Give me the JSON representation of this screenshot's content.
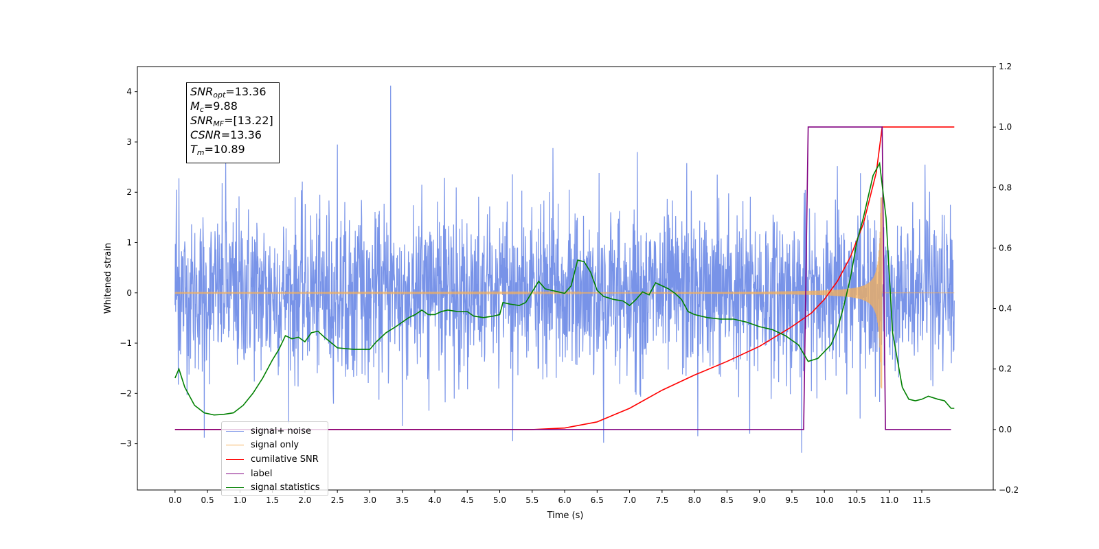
{
  "chart_data": {
    "type": "line",
    "xlabel": "Time (s)",
    "ylabel": "Whitened strain",
    "x_ticks": [
      "0.0",
      "0.5",
      "1.0",
      "1.5",
      "2.0",
      "2.5",
      "3.0",
      "3.5",
      "4.0",
      "4.5",
      "5.0",
      "5.5",
      "6.0",
      "6.5",
      "7.0",
      "7.5",
      "8.0",
      "8.5",
      "9.0",
      "9.5",
      "10.0",
      "10.5",
      "11.0",
      "11.5"
    ],
    "y_ticks": [
      -3,
      -2,
      -1,
      0,
      1,
      2,
      3,
      4
    ],
    "y2_ticks": [
      "−0.2",
      "0.0",
      "0.2",
      "0.4",
      "0.6",
      "0.8",
      "1.0",
      "1.2"
    ],
    "y_tick_labels": [
      "−3",
      "−2",
      "−1",
      "0",
      "1",
      "2",
      "3",
      "4"
    ],
    "xlim": [
      -0.58,
      12.6
    ],
    "ylim": [
      -3.92,
      4.5
    ],
    "y2lim": [
      -0.2,
      1.2
    ],
    "grid": false,
    "legend_position": "lower-left",
    "stats_box": {
      "snr_opt": "=13.36",
      "mc": "=9.88",
      "snr_mf": "=[13.22]",
      "csnr": "=13.36",
      "tm": "=10.89"
    },
    "series": [
      {
        "name": "signal+ noise",
        "color": "#7893e8",
        "axis": "left",
        "style": "noise",
        "t_start": 0.0,
        "t_end": 12.0,
        "typical_range": [
          -1.5,
          1.5
        ],
        "spikes": [
          [
            0.02,
            2.05
          ],
          [
            0.06,
            2.28
          ],
          [
            0.45,
            -2.88
          ],
          [
            0.78,
            2.6
          ],
          [
            1.75,
            -2.6
          ],
          [
            2.5,
            2.95
          ],
          [
            3.32,
            4.12
          ],
          [
            3.5,
            -2.65
          ],
          [
            5.2,
            -2.95
          ],
          [
            5.82,
            2.88
          ],
          [
            6.6,
            -2.98
          ],
          [
            7.12,
            2.8
          ],
          [
            7.88,
            2.58
          ],
          [
            8.05,
            -2.85
          ],
          [
            8.35,
            2.35
          ],
          [
            8.85,
            -2.8
          ],
          [
            9.65,
            -3.18
          ],
          [
            10.2,
            2.52
          ],
          [
            10.55,
            -2.5
          ],
          [
            11.55,
            2.55
          ]
        ]
      },
      {
        "name": "signal only",
        "color": "#f5b05a",
        "axis": "left",
        "style": "chirp",
        "t_start": 0.0,
        "t_end": 12.0,
        "merger_time": 10.89,
        "peak_amplitude": 1.9
      },
      {
        "name": "cumilative SNR",
        "color": "#ff0000",
        "axis": "right",
        "x": [
          0.0,
          5.5,
          6.0,
          6.5,
          7.0,
          7.5,
          8.0,
          8.5,
          9.0,
          9.5,
          9.8,
          10.0,
          10.2,
          10.4,
          10.6,
          10.8,
          10.89,
          12.0
        ],
        "y": [
          0.0,
          0.0,
          0.005,
          0.025,
          0.07,
          0.13,
          0.18,
          0.225,
          0.275,
          0.34,
          0.385,
          0.43,
          0.49,
          0.57,
          0.68,
          0.85,
          1.0,
          1.0
        ]
      },
      {
        "name": "label",
        "color": "#800080",
        "axis": "right",
        "x": [
          0.0,
          9.68,
          9.75,
          10.89,
          10.94,
          11.95
        ],
        "y": [
          0.0,
          0.0,
          1.0,
          1.0,
          0.0,
          0.0
        ]
      },
      {
        "name": "signal statistics",
        "color": "#008000",
        "axis": "right",
        "x": [
          0.0,
          0.06,
          0.15,
          0.3,
          0.45,
          0.6,
          0.75,
          0.9,
          1.05,
          1.2,
          1.35,
          1.5,
          1.6,
          1.7,
          1.8,
          1.9,
          2.0,
          2.1,
          2.2,
          2.3,
          2.5,
          2.75,
          3.0,
          3.1,
          3.25,
          3.4,
          3.5,
          3.6,
          3.7,
          3.8,
          3.9,
          4.0,
          4.1,
          4.2,
          4.35,
          4.5,
          4.6,
          4.75,
          4.9,
          5.0,
          5.05,
          5.15,
          5.3,
          5.4,
          5.5,
          5.6,
          5.7,
          5.8,
          5.9,
          6.0,
          6.1,
          6.2,
          6.3,
          6.4,
          6.5,
          6.6,
          6.75,
          6.9,
          7.0,
          7.1,
          7.2,
          7.3,
          7.4,
          7.5,
          7.6,
          7.7,
          7.8,
          7.9,
          8.0,
          8.2,
          8.4,
          8.6,
          8.8,
          9.0,
          9.2,
          9.4,
          9.6,
          9.75,
          9.9,
          10.1,
          10.2,
          10.3,
          10.4,
          10.5,
          10.6,
          10.75,
          10.85,
          10.95,
          11.05,
          11.2,
          11.3,
          11.4,
          11.5,
          11.6,
          11.75,
          11.85,
          11.95,
          12.0
        ],
        "y": [
          0.17,
          0.2,
          0.14,
          0.08,
          0.055,
          0.048,
          0.05,
          0.055,
          0.08,
          0.12,
          0.17,
          0.23,
          0.265,
          0.31,
          0.3,
          0.305,
          0.29,
          0.32,
          0.325,
          0.305,
          0.27,
          0.265,
          0.265,
          0.29,
          0.32,
          0.34,
          0.355,
          0.37,
          0.38,
          0.395,
          0.38,
          0.38,
          0.39,
          0.395,
          0.39,
          0.39,
          0.375,
          0.37,
          0.375,
          0.38,
          0.42,
          0.415,
          0.41,
          0.42,
          0.455,
          0.49,
          0.465,
          0.46,
          0.455,
          0.45,
          0.475,
          0.56,
          0.555,
          0.52,
          0.46,
          0.44,
          0.43,
          0.425,
          0.41,
          0.43,
          0.455,
          0.445,
          0.485,
          0.475,
          0.465,
          0.45,
          0.43,
          0.39,
          0.38,
          0.37,
          0.365,
          0.365,
          0.355,
          0.34,
          0.33,
          0.31,
          0.28,
          0.225,
          0.235,
          0.28,
          0.33,
          0.41,
          0.5,
          0.62,
          0.7,
          0.84,
          0.88,
          0.7,
          0.32,
          0.14,
          0.1,
          0.095,
          0.1,
          0.11,
          0.1,
          0.095,
          0.07,
          0.07
        ]
      }
    ]
  }
}
